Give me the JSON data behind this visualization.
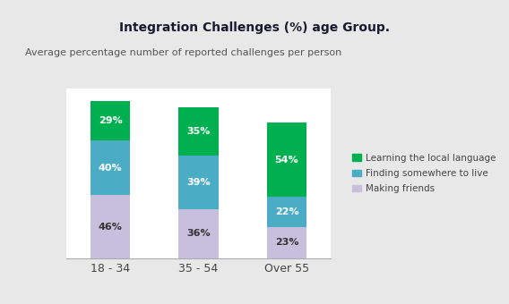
{
  "title": "Integration Challenges (%) age Group.",
  "subtitle": "Average percentage number of reported challenges per person",
  "categories": [
    "18 - 34",
    "35 - 54",
    "Over 55"
  ],
  "series": {
    "Making friends": [
      46,
      36,
      23
    ],
    "Finding somewhere to live": [
      40,
      39,
      22
    ],
    "Learning the local language": [
      29,
      35,
      54
    ]
  },
  "colors": {
    "Making friends": "#c8bfdd",
    "Finding somewhere to live": "#4bacc6",
    "Learning the local language": "#00b050"
  },
  "legend_order": [
    "Learning the local language",
    "Finding somewhere to live",
    "Making friends"
  ],
  "stack_order": [
    "Making friends",
    "Finding somewhere to live",
    "Learning the local language"
  ],
  "bar_width": 0.45,
  "title_fontsize": 10,
  "subtitle_fontsize": 8,
  "label_fontsize": 8,
  "tick_fontsize": 9,
  "outer_bg": "#e8e8e8",
  "inner_bg": "#ffffff",
  "label_color_dark": "#333333",
  "label_color_white": "#ffffff"
}
